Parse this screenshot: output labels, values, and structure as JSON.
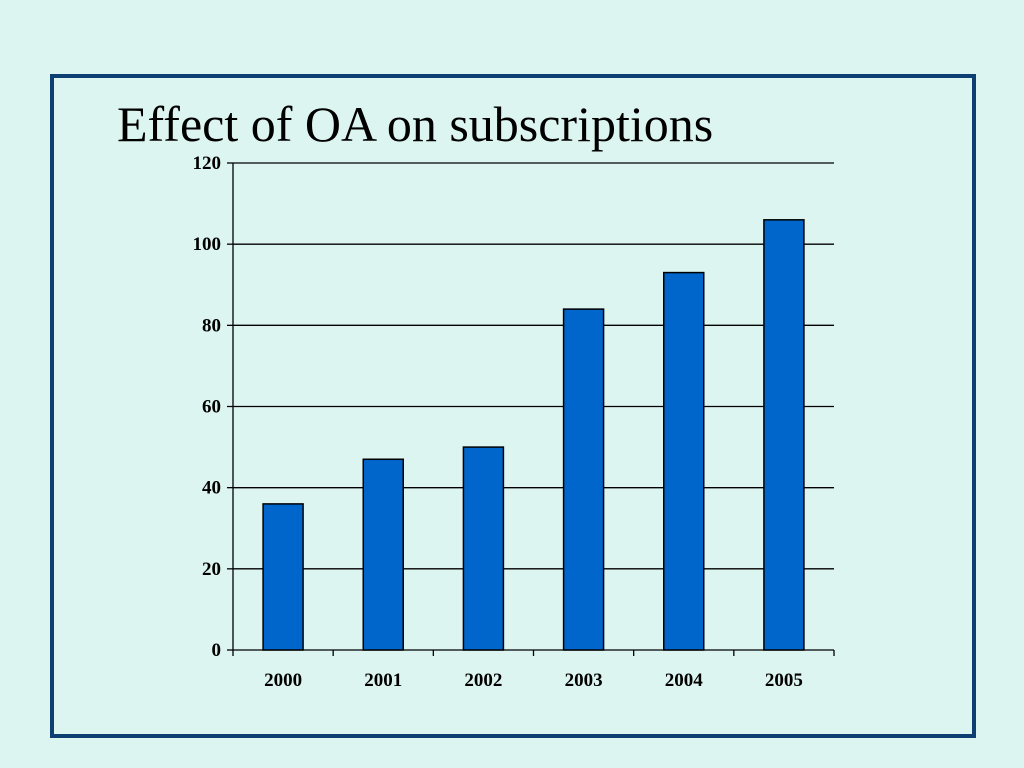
{
  "slide": {
    "title": "Effect of OA on subscriptions"
  },
  "chart_data": {
    "type": "bar",
    "title": "",
    "xlabel": "",
    "ylabel": "",
    "categories": [
      "2000",
      "2001",
      "2002",
      "2003",
      "2004",
      "2005"
    ],
    "values": [
      36,
      47,
      50,
      84,
      93,
      106
    ],
    "ylim": [
      0,
      120
    ],
    "yticks": [
      0,
      20,
      40,
      60,
      80,
      100,
      120
    ],
    "grid": true,
    "legend": "none",
    "bar_color": "#0066cc",
    "bar_outline": "#000000"
  },
  "colors": {
    "background": "#ddf5f0",
    "frame": "#0d3f73"
  }
}
